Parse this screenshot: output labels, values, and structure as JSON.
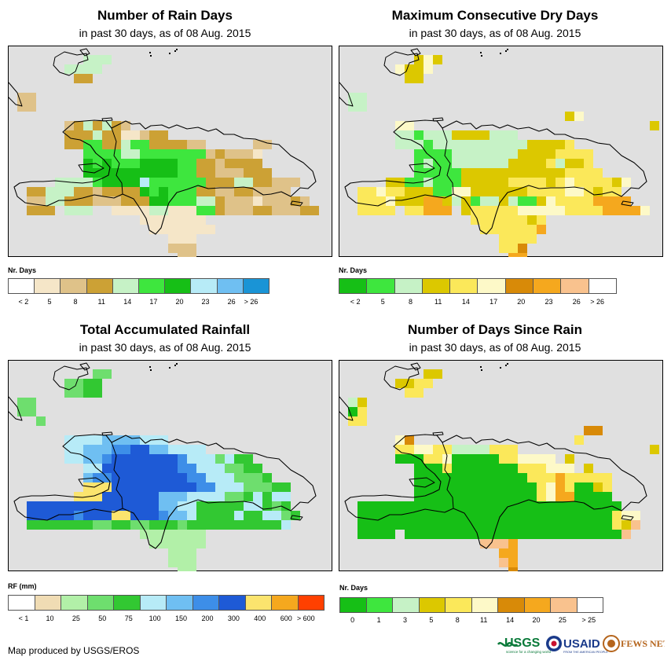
{
  "colors": {
    "background": "#e0e0e0",
    "land_outline": "#000000"
  },
  "panels": [
    {
      "id": "rain-days",
      "title": "Number of Rain Days",
      "subtitle": "in past 30 days, as of 08 Aug. 2015",
      "legend": {
        "title": "Nr. Days",
        "colors": [
          "#ffffff",
          "#f5e6c8",
          "#dfc289",
          "#cca135",
          "#c6f2c6",
          "#3ee63e",
          "#16bf16",
          "#b7ebf7",
          "#6fbff2",
          "#1a94d6"
        ],
        "ticks": [
          "< 2",
          "5",
          "8",
          "11",
          "14",
          "17",
          "20",
          "23",
          "26",
          "> 26"
        ],
        "tick_mode": "between"
      },
      "chart_data": {
        "type": "heatmap",
        "title": "Number of Rain Days",
        "subtitle": "in past 30 days, as of 08 Aug. 2015",
        "legend_title": "Nr. Days",
        "units": "days",
        "grid": [
          "..................................",
          "........444.......................",
          "......4444........................",
          ".......33.........................",
          "..................................",
          ".22...............................",
          ".22...............................",
          "..................................",
          "......2343432.....................",
          "......33343311233.................",
          "......335533455333322.....22......",
          "........5555445555555232221.......",
          "........6565556666553323333.......",
          "........66666666665533222333......",
          ".....44445666675555553334433222...",
          "..3344433233336565553322332222....",
          "..224433322233366555443222122232..",
          "..333.444..1111441115532223322233.",
          "..............1111111.............",
          "...............1111111............",
          ".................111..............",
          ".................222..............",
          "..................22.............."
        ]
      }
    },
    {
      "id": "max-dry-days",
      "title": "Maximum Consecutive Dry Days",
      "subtitle": "in past 30 days, as of 08 Aug. 2015",
      "legend": {
        "title": "Nr. Days",
        "colors": [
          "#16bf16",
          "#3ee63e",
          "#c6f2c6",
          "#dcc800",
          "#fbe85a",
          "#fdf9c8",
          "#d88a08",
          "#f5a81e",
          "#f9c28e",
          "#ffffff"
        ],
        "ticks": [
          "< 2",
          "5",
          "8",
          "11",
          "14",
          "17",
          "20",
          "23",
          "26",
          "> 26"
        ],
        "tick_mode": "between"
      },
      "chart_data": {
        "type": "heatmap",
        "title": "Maximum Consecutive Dry Days",
        "subtitle": "in past 30 days, as of 08 Aug. 2015",
        "legend_title": "Nr. Days",
        "units": "days",
        "grid": [
          "..................................",
          "........353.......................",
          "......5335........................",
          ".......33.........................",
          "..................................",
          ".22...............................",
          ".22...............................",
          "........................35........",
          "......55.........................3",
          "......2212223333222...............",
          "......2221222222222233334.........",
          "........1111222222233334444.......",
          "........1211222222333342334.......",
          "........11111333333333334444......",
          ".....33112111333334444345444435...",
          "..4454433311553333334444554344....",
          "..44453337732312232113544447777...",
          "..4444.44777.34444455555444477775.",
          "..............44444434............",
          "...............4444447............",
          ".................4444.............",
          ".................446..............",
          "..................77.............."
        ]
      }
    },
    {
      "id": "total-rainfall",
      "title": "Total Accumulated Rainfall",
      "subtitle": "in past 30 days, as of 08 Aug. 2015",
      "legend": {
        "title": "RF (mm)",
        "colors": [
          "#ffffff",
          "#f0dcb4",
          "#b2f0a8",
          "#6ede6e",
          "#32c832",
          "#b7ebf7",
          "#6fbff2",
          "#3d8ee8",
          "#1e5ad6",
          "#fbe46e",
          "#f5a81e",
          "#ff4000"
        ],
        "ticks": [
          "< 1",
          "10",
          "25",
          "50",
          "75",
          "100",
          "150",
          "200",
          "300",
          "400",
          "600",
          "> 600"
        ],
        "tick_mode": "between"
      },
      "chart_data": {
        "type": "heatmap",
        "title": "Total Accumulated Rainfall",
        "subtitle": "in past 30 days, as of 08 Aug. 2015",
        "legend_title": "RF (mm)",
        "units": "mm",
        "grid": [
          "..................................",
          ".........33.......................",
          "......3344........................",
          "......3344........................",
          ".33...............................",
          ".33...............................",
          "...3..............................",
          "..................................",
          "......55556666555.................",
          "......556667788665555.............",
          "......55667888888875553544........",
          "........5588888888775553344.......",
          "........67788888888775553334......",
          "........9998888888887755533344....",
          ".......99988888866655553345455....",
          "..8888888888888866554444455434....",
          "..88888788899888766544445445534...",
          "..4444444334433444344444444445....",
          "..............2222222.............",
          "...............222222.............",
          ".................222..............",
          ".................222..............",
          "..................22.............."
        ]
      }
    },
    {
      "id": "days-since-rain",
      "title": "Number of Days Since Rain",
      "subtitle": "in past 30 days, as of 08 Aug. 2015",
      "legend": {
        "title": "Nr. Days",
        "colors": [
          "#16bf16",
          "#3ee63e",
          "#c6f2c6",
          "#dcc800",
          "#fbe85a",
          "#fdf9c8",
          "#d88a08",
          "#f5a81e",
          "#f9c28e",
          "#ffffff"
        ],
        "ticks": [
          "0",
          "1",
          "3",
          "5",
          "8",
          "11",
          "14",
          "20",
          "25",
          "> 25"
        ],
        "tick_mode": "center"
      },
      "chart_data": {
        "type": "heatmap",
        "title": "Number of Days Since Rain",
        "subtitle": "in past 30 days, as of 08 Aug. 2015",
        "legend_title": "Nr. Days",
        "units": "days",
        "grid": [
          "..................................",
          ".........33.......................",
          "......3344........................",
          ".......44.........................",
          ".23...............................",
          ".04...............................",
          ".44...............................",
          "..........................66......",
          "......56.................4........",
          "......4455442222444..............3",
          "......00044500000445555.3.........",
          "........00040000000444555.3.......",
          "........000000000000444744444.....",
          "........000000000000045740034.....",
          "........000000000000045770000.....",
          "..0000000000000000000000000000....",
          "..000000000000000000000000000455..",
          "..000000000000000000000000000438..",
          "..0000.000000000000000000000008...",
          "...............8887...............",
          ".................77...............",
          ".................87...............",
          "..................6..............."
        ]
      }
    }
  ],
  "footer": {
    "credit": "Map produced by USGS/EROS",
    "logo_usgs": "USGS",
    "logo_usgs_tagline": "science for a changing world",
    "logo_usaid": "USAID",
    "logo_usaid_tagline": "FROM THE AMERICAN PEOPLE",
    "logo_fews": "FEWS NET"
  }
}
